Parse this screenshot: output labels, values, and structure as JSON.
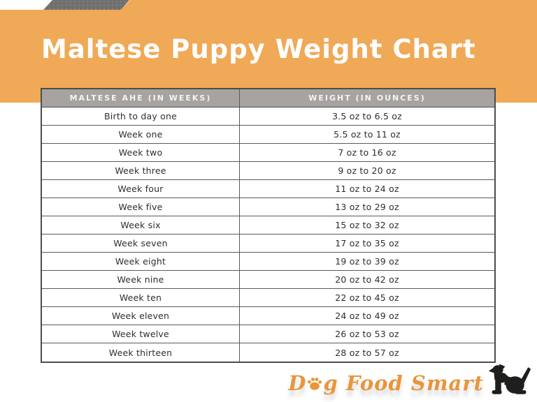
{
  "header": {
    "title": "Maltese Puppy Weight Chart"
  },
  "chart_data": {
    "type": "table",
    "title": "Maltese Puppy Weight Chart",
    "columns": [
      "MALTESE AHE (IN WEEKS)",
      "WEIGHT (IN OUNCES)"
    ],
    "rows": [
      [
        "Birth to day one",
        "3.5 oz to 6.5 oz"
      ],
      [
        "Week one",
        "5.5 oz to 11 oz"
      ],
      [
        "Week two",
        "7 oz to 16 oz"
      ],
      [
        "Week three",
        "9 oz to 20 oz"
      ],
      [
        "Week four",
        "11 oz to 24 oz"
      ],
      [
        "Week five",
        "13 oz to 29 oz"
      ],
      [
        "Week six",
        "15 oz to 32 oz"
      ],
      [
        "Week seven",
        "17 oz to 35 oz"
      ],
      [
        "Week eight",
        "19 oz to 39 oz"
      ],
      [
        "Week nine",
        "20 oz to 42 oz"
      ],
      [
        "Week ten",
        "22 oz to 45 oz"
      ],
      [
        "Week eleven",
        "24 oz to 49 oz"
      ],
      [
        "Week twelve",
        "26 oz to 53 oz"
      ],
      [
        "Week thirteen",
        "28 oz to 57 oz"
      ]
    ]
  },
  "logo": {
    "dog_d": "D",
    "dog_g": "g",
    "rest": " Food Smart",
    "paw_icon": "paw-print-icon",
    "dog_icon": "dog-silhouette-icon"
  },
  "colors": {
    "band_orange": "#F0A956",
    "ribbon_gray": "#6F6F6F",
    "header_gray": "#A7A3A0",
    "border_dark": "#4D4D4D",
    "body_text": "#2E2E2E",
    "logo_orange": "#E8953C"
  }
}
